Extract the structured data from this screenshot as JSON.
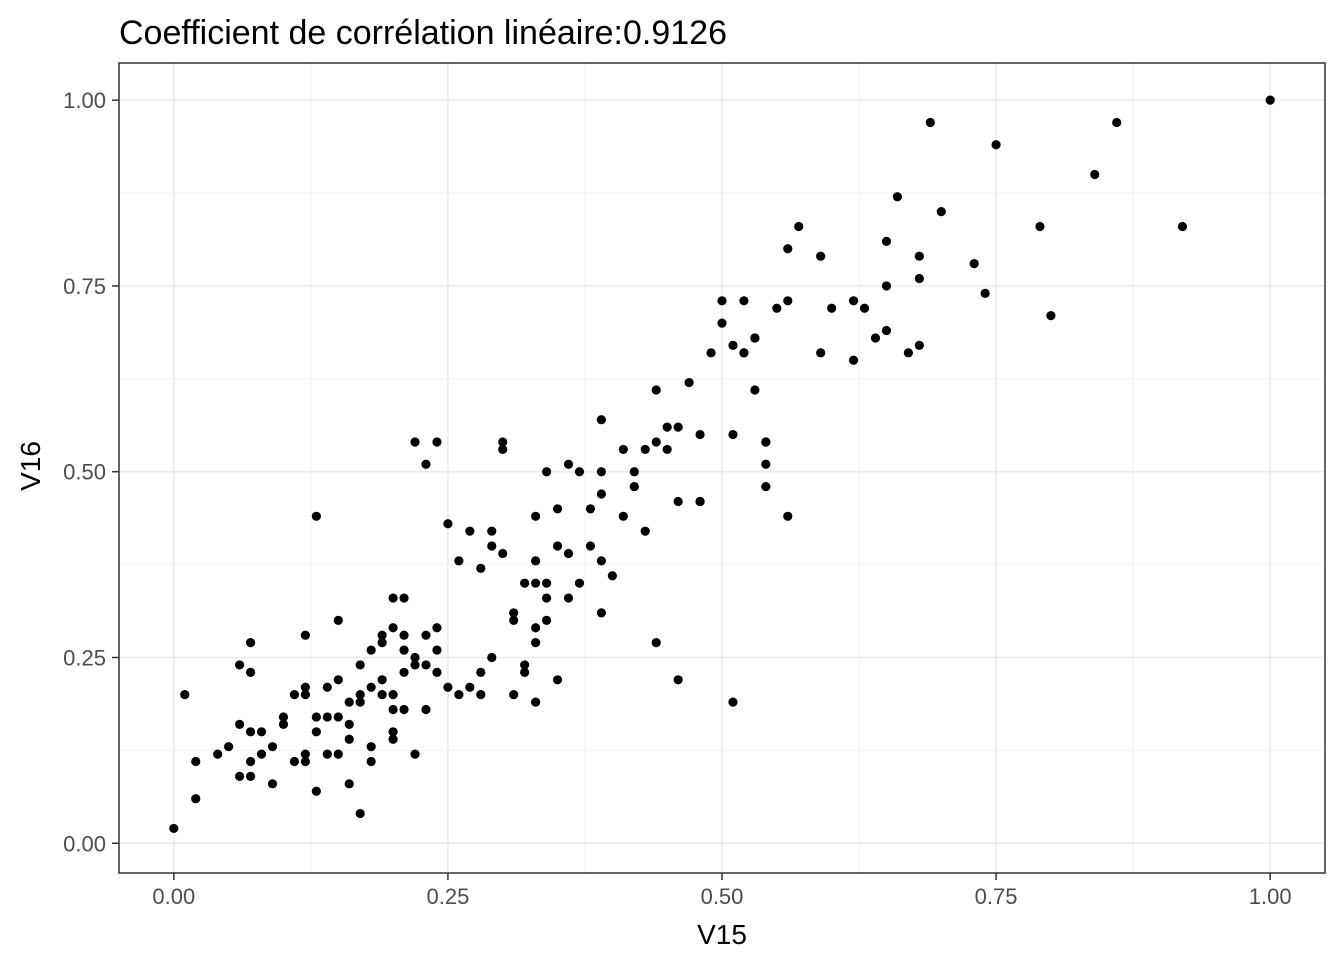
{
  "chart_data": {
    "type": "scatter",
    "title": "Coefficient de corrélation linéaire:0.9126",
    "xlabel": "V15",
    "ylabel": "V16",
    "xlim": [
      -0.05,
      1.05
    ],
    "ylim": [
      -0.04,
      1.05
    ],
    "xticks": [
      0.0,
      0.25,
      0.5,
      0.75,
      1.0
    ],
    "yticks": [
      0.0,
      0.25,
      0.5,
      0.75,
      1.0
    ],
    "xtick_labels": [
      "0.00",
      "0.25",
      "0.50",
      "0.75",
      "1.00"
    ],
    "ytick_labels": [
      "0.00",
      "0.25",
      "0.50",
      "0.75",
      "1.00"
    ],
    "grid": true,
    "point_color": "#000000",
    "points": [
      [
        0.0,
        0.02
      ],
      [
        0.01,
        0.2
      ],
      [
        0.02,
        0.06
      ],
      [
        0.02,
        0.11
      ],
      [
        0.04,
        0.12
      ],
      [
        0.05,
        0.13
      ],
      [
        0.06,
        0.24
      ],
      [
        0.06,
        0.16
      ],
      [
        0.06,
        0.09
      ],
      [
        0.07,
        0.27
      ],
      [
        0.07,
        0.23
      ],
      [
        0.07,
        0.15
      ],
      [
        0.07,
        0.11
      ],
      [
        0.07,
        0.09
      ],
      [
        0.08,
        0.15
      ],
      [
        0.08,
        0.12
      ],
      [
        0.09,
        0.08
      ],
      [
        0.09,
        0.13
      ],
      [
        0.1,
        0.17
      ],
      [
        0.1,
        0.16
      ],
      [
        0.11,
        0.2
      ],
      [
        0.11,
        0.11
      ],
      [
        0.12,
        0.2
      ],
      [
        0.12,
        0.11
      ],
      [
        0.12,
        0.21
      ],
      [
        0.12,
        0.12
      ],
      [
        0.12,
        0.28
      ],
      [
        0.13,
        0.07
      ],
      [
        0.13,
        0.17
      ],
      [
        0.13,
        0.15
      ],
      [
        0.13,
        0.44
      ],
      [
        0.14,
        0.17
      ],
      [
        0.14,
        0.12
      ],
      [
        0.14,
        0.21
      ],
      [
        0.15,
        0.22
      ],
      [
        0.15,
        0.3
      ],
      [
        0.15,
        0.12
      ],
      [
        0.15,
        0.17
      ],
      [
        0.16,
        0.08
      ],
      [
        0.16,
        0.16
      ],
      [
        0.16,
        0.14
      ],
      [
        0.16,
        0.19
      ],
      [
        0.17,
        0.24
      ],
      [
        0.17,
        0.04
      ],
      [
        0.17,
        0.2
      ],
      [
        0.17,
        0.19
      ],
      [
        0.18,
        0.13
      ],
      [
        0.18,
        0.11
      ],
      [
        0.18,
        0.21
      ],
      [
        0.18,
        0.26
      ],
      [
        0.19,
        0.28
      ],
      [
        0.19,
        0.2
      ],
      [
        0.19,
        0.22
      ],
      [
        0.19,
        0.27
      ],
      [
        0.2,
        0.29
      ],
      [
        0.2,
        0.33
      ],
      [
        0.2,
        0.18
      ],
      [
        0.2,
        0.15
      ],
      [
        0.2,
        0.14
      ],
      [
        0.2,
        0.2
      ],
      [
        0.21,
        0.33
      ],
      [
        0.21,
        0.28
      ],
      [
        0.21,
        0.26
      ],
      [
        0.21,
        0.18
      ],
      [
        0.21,
        0.23
      ],
      [
        0.22,
        0.12
      ],
      [
        0.22,
        0.24
      ],
      [
        0.22,
        0.25
      ],
      [
        0.22,
        0.54
      ],
      [
        0.23,
        0.51
      ],
      [
        0.23,
        0.28
      ],
      [
        0.23,
        0.24
      ],
      [
        0.23,
        0.18
      ],
      [
        0.24,
        0.23
      ],
      [
        0.24,
        0.26
      ],
      [
        0.24,
        0.29
      ],
      [
        0.24,
        0.54
      ],
      [
        0.25,
        0.21
      ],
      [
        0.25,
        0.43
      ],
      [
        0.26,
        0.38
      ],
      [
        0.26,
        0.2
      ],
      [
        0.27,
        0.42
      ],
      [
        0.27,
        0.21
      ],
      [
        0.28,
        0.23
      ],
      [
        0.28,
        0.2
      ],
      [
        0.28,
        0.37
      ],
      [
        0.29,
        0.42
      ],
      [
        0.29,
        0.25
      ],
      [
        0.29,
        0.4
      ],
      [
        0.3,
        0.39
      ],
      [
        0.3,
        0.54
      ],
      [
        0.3,
        0.53
      ],
      [
        0.31,
        0.3
      ],
      [
        0.31,
        0.31
      ],
      [
        0.31,
        0.2
      ],
      [
        0.32,
        0.24
      ],
      [
        0.32,
        0.23
      ],
      [
        0.32,
        0.35
      ],
      [
        0.33,
        0.19
      ],
      [
        0.33,
        0.27
      ],
      [
        0.33,
        0.35
      ],
      [
        0.33,
        0.44
      ],
      [
        0.33,
        0.38
      ],
      [
        0.33,
        0.29
      ],
      [
        0.34,
        0.5
      ],
      [
        0.34,
        0.3
      ],
      [
        0.34,
        0.35
      ],
      [
        0.34,
        0.33
      ],
      [
        0.35,
        0.4
      ],
      [
        0.35,
        0.45
      ],
      [
        0.35,
        0.22
      ],
      [
        0.36,
        0.33
      ],
      [
        0.36,
        0.39
      ],
      [
        0.36,
        0.51
      ],
      [
        0.37,
        0.5
      ],
      [
        0.37,
        0.35
      ],
      [
        0.38,
        0.4
      ],
      [
        0.38,
        0.45
      ],
      [
        0.39,
        0.57
      ],
      [
        0.39,
        0.38
      ],
      [
        0.39,
        0.5
      ],
      [
        0.39,
        0.47
      ],
      [
        0.39,
        0.31
      ],
      [
        0.4,
        0.36
      ],
      [
        0.41,
        0.44
      ],
      [
        0.41,
        0.53
      ],
      [
        0.42,
        0.48
      ],
      [
        0.42,
        0.5
      ],
      [
        0.43,
        0.53
      ],
      [
        0.43,
        0.42
      ],
      [
        0.44,
        0.61
      ],
      [
        0.44,
        0.54
      ],
      [
        0.44,
        0.27
      ],
      [
        0.45,
        0.56
      ],
      [
        0.45,
        0.53
      ],
      [
        0.46,
        0.22
      ],
      [
        0.46,
        0.46
      ],
      [
        0.46,
        0.56
      ],
      [
        0.47,
        0.62
      ],
      [
        0.48,
        0.55
      ],
      [
        0.48,
        0.46
      ],
      [
        0.48,
        0.46
      ],
      [
        0.49,
        0.66
      ],
      [
        0.5,
        0.7
      ],
      [
        0.5,
        0.73
      ],
      [
        0.51,
        0.19
      ],
      [
        0.51,
        0.67
      ],
      [
        0.51,
        0.55
      ],
      [
        0.52,
        0.66
      ],
      [
        0.52,
        0.73
      ],
      [
        0.52,
        0.66
      ],
      [
        0.53,
        0.61
      ],
      [
        0.53,
        0.68
      ],
      [
        0.53,
        0.68
      ],
      [
        0.54,
        0.54
      ],
      [
        0.54,
        0.51
      ],
      [
        0.54,
        0.48
      ],
      [
        0.54,
        0.54
      ],
      [
        0.55,
        0.72
      ],
      [
        0.56,
        0.8
      ],
      [
        0.56,
        0.73
      ],
      [
        0.56,
        0.44
      ],
      [
        0.57,
        0.83
      ],
      [
        0.59,
        0.79
      ],
      [
        0.59,
        0.66
      ],
      [
        0.6,
        0.72
      ],
      [
        0.62,
        0.65
      ],
      [
        0.62,
        0.73
      ],
      [
        0.63,
        0.72
      ],
      [
        0.64,
        0.68
      ],
      [
        0.65,
        0.75
      ],
      [
        0.65,
        0.69
      ],
      [
        0.65,
        0.81
      ],
      [
        0.66,
        0.87
      ],
      [
        0.67,
        0.66
      ],
      [
        0.68,
        0.67
      ],
      [
        0.68,
        0.79
      ],
      [
        0.68,
        0.76
      ],
      [
        0.69,
        0.97
      ],
      [
        0.7,
        0.85
      ],
      [
        0.73,
        0.78
      ],
      [
        0.74,
        0.74
      ],
      [
        0.75,
        0.94
      ],
      [
        0.79,
        0.83
      ],
      [
        0.8,
        0.71
      ],
      [
        0.84,
        0.9
      ],
      [
        0.86,
        0.97
      ],
      [
        0.92,
        0.83
      ],
      [
        1.0,
        1.0
      ]
    ]
  }
}
